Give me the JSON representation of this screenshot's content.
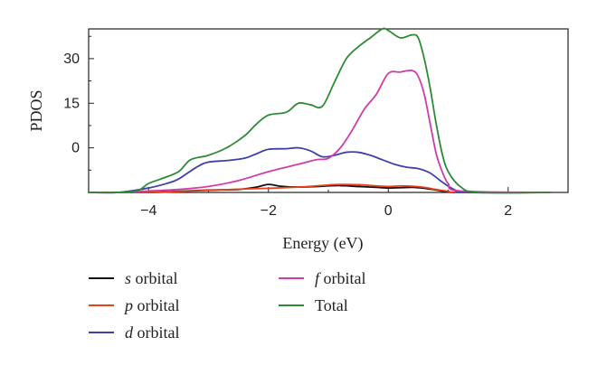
{
  "chart_data": {
    "type": "line",
    "xlabel": "Energy (eV)",
    "ylabel": "PDOS",
    "xlim": [
      -5,
      3
    ],
    "ylim": [
      -15,
      40
    ],
    "xticks": [
      -4,
      -2,
      0,
      2
    ],
    "xtick_labels": [
      "−4",
      "−2",
      "0",
      "2"
    ],
    "yticks": [
      0,
      15,
      30
    ],
    "ytick_labels": [
      "0",
      "15",
      "30"
    ],
    "grid": false,
    "legend_position": "bottom",
    "series": [
      {
        "name": "s orbital",
        "style": "s",
        "color": "#111111",
        "x": [
          -5.0,
          -4.0,
          -3.5,
          -3.0,
          -2.5,
          -2.2,
          -2.0,
          -1.8,
          -1.5,
          -1.2,
          -1.0,
          -0.8,
          -0.5,
          -0.2,
          0.0,
          0.2,
          0.4,
          0.6,
          0.8,
          1.0,
          1.2,
          2.7
        ],
        "y": [
          -15,
          -15,
          -14.6,
          -14.2,
          -14.0,
          -13.2,
          -12.3,
          -12.9,
          -13.2,
          -13.0,
          -12.8,
          -12.7,
          -13.0,
          -13.3,
          -13.5,
          -13.4,
          -13.3,
          -13.6,
          -14.2,
          -14.8,
          -15,
          -15
        ]
      },
      {
        "name": "p orbital",
        "style": "p",
        "color": "#e8401c",
        "x": [
          -5.0,
          -4.0,
          -3.5,
          -3.0,
          -2.5,
          -2.0,
          -1.5,
          -1.2,
          -1.0,
          -0.8,
          -0.5,
          -0.2,
          0.0,
          0.2,
          0.4,
          0.6,
          0.8,
          1.0,
          1.2,
          2.7
        ],
        "y": [
          -15,
          -15,
          -14.7,
          -14.3,
          -13.9,
          -13.6,
          -13.2,
          -12.8,
          -12.5,
          -12.3,
          -12.4,
          -12.8,
          -13.0,
          -12.8,
          -12.9,
          -13.3,
          -14.0,
          -14.6,
          -15,
          -15
        ]
      },
      {
        "name": "d orbital",
        "style": "d",
        "color": "#4040a8",
        "x": [
          -5.0,
          -4.5,
          -4.0,
          -3.7,
          -3.5,
          -3.2,
          -3.0,
          -2.7,
          -2.4,
          -2.2,
          -2.0,
          -1.7,
          -1.5,
          -1.3,
          -1.1,
          -0.9,
          -0.7,
          -0.5,
          -0.3,
          -0.1,
          0.1,
          0.3,
          0.5,
          0.7,
          0.9,
          1.1,
          1.3,
          2.7
        ],
        "y": [
          -15,
          -15,
          -13.5,
          -12.0,
          -10.5,
          -6.5,
          -4.8,
          -4.3,
          -3.5,
          -2.0,
          -0.5,
          -0.3,
          0.0,
          -1.0,
          -3.0,
          -2.5,
          -1.5,
          -1.5,
          -2.5,
          -4.0,
          -5.5,
          -6.5,
          -7.0,
          -8.5,
          -11.5,
          -14.0,
          -15,
          -15
        ]
      },
      {
        "name": "f orbital",
        "style": "f",
        "color": "#d03ca8",
        "x": [
          -5.0,
          -4.5,
          -4.0,
          -3.5,
          -3.0,
          -2.5,
          -2.0,
          -1.5,
          -1.2,
          -1.0,
          -0.8,
          -0.6,
          -0.4,
          -0.2,
          0.0,
          0.2,
          0.4,
          0.5,
          0.6,
          0.7,
          0.8,
          0.9,
          1.0,
          1.2,
          2.7
        ],
        "y": [
          -15,
          -15,
          -14.5,
          -14.0,
          -13.0,
          -11.0,
          -8.0,
          -5.5,
          -4.0,
          -3.5,
          0.0,
          6.0,
          13.0,
          18.0,
          25.0,
          25.5,
          26.0,
          24.0,
          18.0,
          8.0,
          -2.0,
          -8.0,
          -12.0,
          -14.5,
          -15
        ]
      },
      {
        "name": "Total",
        "style": "plain",
        "color": "#2e8a34",
        "x": [
          -5.0,
          -4.6,
          -4.2,
          -4.0,
          -3.8,
          -3.5,
          -3.3,
          -3.0,
          -2.7,
          -2.4,
          -2.2,
          -2.0,
          -1.7,
          -1.5,
          -1.3,
          -1.1,
          -0.9,
          -0.7,
          -0.5,
          -0.3,
          -0.1,
          0.0,
          0.2,
          0.4,
          0.5,
          0.6,
          0.7,
          0.8,
          0.9,
          1.0,
          1.2,
          1.5,
          2.7
        ],
        "y": [
          -15,
          -15,
          -14.5,
          -12.0,
          -10.5,
          -8.0,
          -4.0,
          -2.5,
          0.0,
          4.0,
          8.0,
          11.0,
          12.0,
          15.0,
          14.5,
          14.0,
          22.0,
          30.0,
          34.0,
          37.0,
          40.0,
          39.5,
          37.0,
          38.0,
          37.0,
          30.0,
          20.0,
          8.0,
          -2.0,
          -8.0,
          -13.0,
          -15,
          -15
        ]
      }
    ]
  }
}
